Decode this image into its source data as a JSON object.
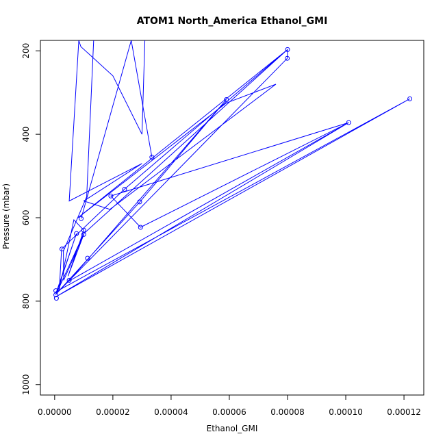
{
  "chart_data": {
    "type": "line",
    "title": "ATOM1 North_America Ethanol_GMI",
    "xlabel": "Ethanol_GMI",
    "ylabel": "Pressure (mbar)",
    "x_ticks": [
      "0.00000",
      "0.00002",
      "0.00004",
      "0.00006",
      "0.00008",
      "0.00010",
      "0.00012"
    ],
    "x_tick_values": [
      0,
      2e-05,
      4e-05,
      6e-05,
      8e-05,
      0.0001,
      0.00012
    ],
    "y_ticks": [
      "200",
      "400",
      "600",
      "800",
      "1000"
    ],
    "y_tick_values": [
      200,
      400,
      600,
      800,
      1000
    ],
    "xlim": [
      -4.9e-06,
      0.0001268
    ],
    "ylim": [
      1025,
      175
    ],
    "y_reversed": true,
    "grid": false,
    "series_color": "#0000ff",
    "series": [
      {
        "x": [
          2.63e-05,
          3.34e-05,
          2.63e-05,
          9.1e-06,
          2.63e-05
        ],
        "y": [
          175,
          455,
          175,
          602,
          175
        ]
      },
      {
        "x": [
          1.34e-05,
          1.1e-05,
          3e-06,
          3.1e-06,
          1e-05,
          4.6e-06,
          1e-05,
          6.6e-06,
          1.6e-06,
          2.4e-06,
          2.39e-05,
          8e-05,
          7.99e-05,
          6e-07,
          2.93e-05,
          5.9e-05,
          4.9e-06,
          0.000101,
          1.93e-05,
          2.95e-05,
          0.000101,
          3e-07,
          0.000122,
          3e-07,
          7e-07,
          7.5e-06,
          4e-07,
          1e-05,
          8e-05,
          8e-06,
          5.9e-05,
          7.6e-05,
          1.9e-05,
          1e-05,
          3e-05,
          5e-06,
          8.3e-06,
          9e-06,
          2e-05,
          3e-05,
          3.1e-05
        ],
        "y": [
          175,
          550,
          680,
          750,
          640,
          740,
          630,
          605,
          772,
          675,
          532,
          197,
          218,
          782,
          562,
          317,
          752,
          372,
          548,
          623,
          372,
          790,
          315,
          778,
          776,
          638,
          785,
          638,
          197,
          600,
          325,
          280,
          580,
          560,
          470,
          560,
          175,
          190,
          260,
          400,
          175
        ]
      }
    ],
    "markers": [
      {
        "x": 3.34e-05,
        "y": 455
      },
      {
        "x": 9.1e-06,
        "y": 602
      },
      {
        "x": 1e-05,
        "y": 640
      },
      {
        "x": 1e-05,
        "y": 630
      },
      {
        "x": 7.5e-06,
        "y": 638
      },
      {
        "x": 2.5e-06,
        "y": 675
      },
      {
        "x": 1.13e-05,
        "y": 697
      },
      {
        "x": 5e-06,
        "y": 750
      },
      {
        "x": 4e-07,
        "y": 775
      },
      {
        "x": 4e-07,
        "y": 785
      },
      {
        "x": 6e-07,
        "y": 793
      },
      {
        "x": 1.93e-05,
        "y": 548
      },
      {
        "x": 2.4e-05,
        "y": 532
      },
      {
        "x": 2.92e-05,
        "y": 562
      },
      {
        "x": 2.95e-05,
        "y": 623
      },
      {
        "x": 5.9e-05,
        "y": 317
      },
      {
        "x": 8e-05,
        "y": 197
      },
      {
        "x": 7.99e-05,
        "y": 218
      },
      {
        "x": 0.000101,
        "y": 372
      },
      {
        "x": 0.000122,
        "y": 315
      }
    ]
  }
}
